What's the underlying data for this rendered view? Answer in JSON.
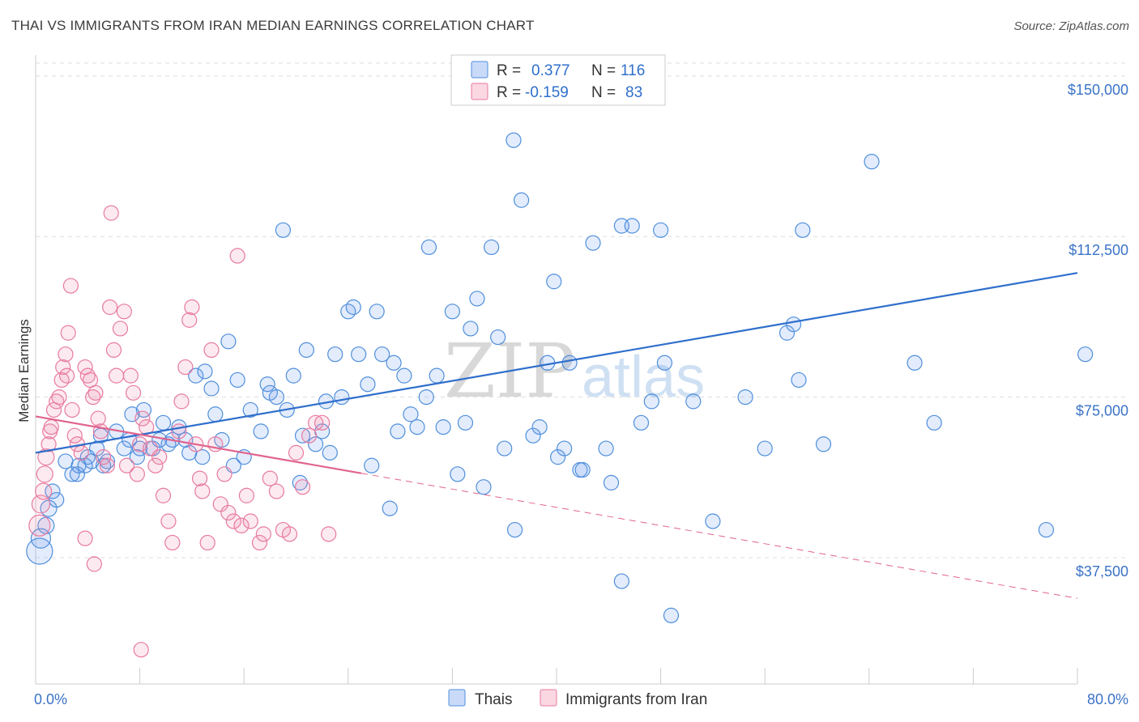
{
  "title": "THAI VS IMMIGRANTS FROM IRAN MEDIAN EARNINGS CORRELATION CHART",
  "source": "Source: ZipAtlas.com",
  "watermark": {
    "zip": "ZIP",
    "atlas": "atlas"
  },
  "colors": {
    "blue": "#4f8fdc",
    "blue_fill": "rgba(100,149,237,0.18)",
    "blue_line": "#2f6fcc",
    "pink": "#e87aa0",
    "pink_fill": "rgba(240,140,170,0.18)",
    "pink_line": "#e0648e",
    "axis_label": "#3a73c7",
    "grid": "#dddddd"
  },
  "legend": {
    "rows": [
      {
        "r_label": "R =",
        "r_value": "0.377",
        "n_label": "N =",
        "n_value": "116"
      },
      {
        "r_label": "R =",
        "r_value": "-0.159",
        "n_label": "N =",
        "n_value": "83"
      }
    ]
  },
  "bottom_legend": [
    "Thais",
    "Immigrants from Iran"
  ],
  "chart_data": {
    "type": "scatter",
    "title": "THAI VS IMMIGRANTS FROM IRAN MEDIAN EARNINGS CORRELATION CHART",
    "xlabel": "",
    "ylabel": "Median Earnings",
    "xlim": [
      0,
      80
    ],
    "ylim": [
      8000,
      153000
    ],
    "x_tick_labels": [
      "0.0%",
      "80.0%"
    ],
    "y_ticks": [
      37500,
      75000,
      112500,
      150000
    ],
    "y_tick_labels": [
      "$37,500",
      "$75,000",
      "$112,500",
      "$150,000"
    ],
    "grid": true,
    "series": [
      {
        "name": "Thais",
        "r": 0.377,
        "n": 116,
        "trend": {
          "x": [
            0,
            80
          ],
          "y": [
            62000,
            104000
          ],
          "dashed_from": null
        },
        "points": [
          [
            0.3,
            39000,
            16
          ],
          [
            0.4,
            42000,
            12
          ],
          [
            0.8,
            45000,
            10
          ],
          [
            1,
            49000,
            10
          ],
          [
            1.3,
            53000,
            9
          ],
          [
            1.6,
            51000,
            9
          ],
          [
            2.3,
            60000,
            9
          ],
          [
            2.8,
            57000,
            9
          ],
          [
            3.3,
            59000,
            9
          ],
          [
            3.8,
            59000,
            9
          ],
          [
            4,
            61000,
            9
          ],
          [
            4.7,
            63000,
            9
          ],
          [
            5,
            66000,
            9
          ],
          [
            5.5,
            60000,
            9
          ],
          [
            6.2,
            67000,
            9
          ],
          [
            7.2,
            65000,
            9
          ],
          [
            8,
            63000,
            9
          ],
          [
            8.3,
            72000,
            9
          ],
          [
            9,
            63000,
            9
          ],
          [
            9.5,
            65000,
            9
          ],
          [
            10.5,
            65000,
            9
          ],
          [
            11.8,
            62000,
            9
          ],
          [
            12.3,
            80000,
            9
          ],
          [
            13,
            81000,
            9
          ],
          [
            13.5,
            77000,
            9
          ],
          [
            14.8,
            88000,
            9
          ],
          [
            15.2,
            59000,
            9
          ],
          [
            16.5,
            72000,
            9
          ],
          [
            17.3,
            67000,
            9
          ],
          [
            17.8,
            78000,
            9
          ],
          [
            18,
            76000,
            9
          ],
          [
            18.5,
            75000,
            9
          ],
          [
            19,
            114000,
            9
          ],
          [
            19.8,
            80000,
            9
          ],
          [
            20.3,
            55000,
            9
          ],
          [
            20.8,
            86000,
            9
          ],
          [
            21.5,
            64000,
            9
          ],
          [
            22,
            67000,
            9
          ],
          [
            22.3,
            74000,
            9
          ],
          [
            23,
            85000,
            9
          ],
          [
            24,
            95000,
            9
          ],
          [
            24.4,
            96000,
            9
          ],
          [
            24.8,
            85000,
            9
          ],
          [
            25.5,
            78000,
            9
          ],
          [
            26.2,
            95000,
            9
          ],
          [
            26.6,
            85000,
            9
          ],
          [
            27.2,
            49000,
            9
          ],
          [
            27.5,
            83000,
            9
          ],
          [
            28.3,
            80000,
            9
          ],
          [
            28.8,
            71000,
            9
          ],
          [
            29.3,
            68000,
            9
          ],
          [
            30.2,
            110000,
            9
          ],
          [
            30.8,
            80000,
            9
          ],
          [
            31.3,
            68000,
            9
          ],
          [
            32,
            95000,
            9
          ],
          [
            32.4,
            57000,
            9
          ],
          [
            33.4,
            91000,
            9
          ],
          [
            33.9,
            98000,
            9
          ],
          [
            34.4,
            54000,
            9
          ],
          [
            35,
            110000,
            9
          ],
          [
            35.5,
            89000,
            9
          ],
          [
            36.7,
            135000,
            9
          ],
          [
            36.8,
            44000,
            9
          ],
          [
            37.3,
            121000,
            9
          ],
          [
            38.2,
            66000,
            9
          ],
          [
            38.7,
            68000,
            9
          ],
          [
            39.3,
            83000,
            9
          ],
          [
            39.8,
            102000,
            9
          ],
          [
            40.1,
            61000,
            9
          ],
          [
            40.6,
            63000,
            9
          ],
          [
            41,
            83000,
            9
          ],
          [
            41.8,
            58000,
            9
          ],
          [
            42.8,
            111000,
            9
          ],
          [
            43.8,
            63000,
            9
          ],
          [
            44.2,
            55000,
            9
          ],
          [
            45,
            115000,
            9
          ],
          [
            45,
            32000,
            9
          ],
          [
            45.8,
            115000,
            9
          ],
          [
            47.3,
            74000,
            9
          ],
          [
            48,
            114000,
            9
          ],
          [
            48.3,
            83000,
            9
          ],
          [
            48.8,
            24000,
            9
          ],
          [
            52,
            46000,
            9
          ],
          [
            54.5,
            75000,
            9
          ],
          [
            56,
            63000,
            9
          ],
          [
            57.7,
            90000,
            9
          ],
          [
            58.2,
            92000,
            9
          ],
          [
            58.6,
            79000,
            9
          ],
          [
            58.9,
            114000,
            9
          ],
          [
            64.2,
            130000,
            9
          ],
          [
            67.5,
            83000,
            9
          ],
          [
            69,
            69000,
            9
          ],
          [
            77.6,
            44000,
            9
          ],
          [
            80.6,
            85000,
            9
          ],
          [
            12.8,
            61000,
            9
          ],
          [
            20.5,
            66000,
            9
          ],
          [
            9.8,
            69000,
            9
          ],
          [
            11.5,
            65000,
            9
          ],
          [
            15.5,
            79000,
            9
          ],
          [
            14.3,
            65000,
            9
          ],
          [
            4.3,
            60000,
            9
          ],
          [
            5.2,
            59000,
            9
          ],
          [
            6.8,
            63000,
            9
          ],
          [
            7.8,
            61000,
            9
          ],
          [
            10.2,
            64000,
            9
          ],
          [
            11,
            68000,
            9
          ],
          [
            16,
            61000,
            9
          ],
          [
            19.3,
            72000,
            9
          ],
          [
            23.5,
            75000,
            9
          ],
          [
            25.8,
            59000,
            9
          ],
          [
            27.8,
            67000,
            9
          ],
          [
            30,
            75000,
            9
          ],
          [
            33,
            69000,
            9
          ],
          [
            36,
            63000,
            9
          ],
          [
            42,
            58000,
            9
          ],
          [
            46.5,
            69000,
            9
          ],
          [
            50.5,
            74000,
            9
          ],
          [
            60.5,
            64000,
            9
          ],
          [
            3.2,
            57000,
            9
          ],
          [
            7.4,
            71000,
            9
          ],
          [
            13.8,
            71000,
            9
          ],
          [
            22.6,
            62000,
            9
          ]
        ]
      },
      {
        "name": "Immigrants from Iran",
        "r": -0.159,
        "n": 83,
        "trend": {
          "x": [
            0,
            80
          ],
          "y": [
            70500,
            28000
          ],
          "dashed_from": 25
        },
        "points": [
          [
            0.3,
            45000,
            13
          ],
          [
            0.4,
            50000,
            11
          ],
          [
            0.6,
            53000,
            10
          ],
          [
            0.7,
            57000,
            10
          ],
          [
            0.8,
            61000,
            10
          ],
          [
            1,
            64000,
            9
          ],
          [
            1.1,
            67000,
            9
          ],
          [
            1.2,
            68000,
            9
          ],
          [
            1.4,
            72000,
            9
          ],
          [
            1.6,
            74000,
            9
          ],
          [
            1.8,
            75000,
            9
          ],
          [
            2,
            79000,
            9
          ],
          [
            2.1,
            82000,
            9
          ],
          [
            2.3,
            85000,
            9
          ],
          [
            2.4,
            80000,
            9
          ],
          [
            2.5,
            90000,
            9
          ],
          [
            2.7,
            101000,
            9
          ],
          [
            2.8,
            72000,
            9
          ],
          [
            3,
            66000,
            9
          ],
          [
            3.2,
            64000,
            9
          ],
          [
            3.5,
            62000,
            9
          ],
          [
            3.8,
            82000,
            9
          ],
          [
            4,
            80000,
            9
          ],
          [
            4.2,
            79000,
            9
          ],
          [
            4.4,
            75000,
            9
          ],
          [
            4.6,
            76000,
            9
          ],
          [
            4.8,
            70000,
            9
          ],
          [
            5,
            67000,
            9
          ],
          [
            5.2,
            61000,
            9
          ],
          [
            5.5,
            59000,
            9
          ],
          [
            5.7,
            96000,
            9
          ],
          [
            5.8,
            118000,
            9
          ],
          [
            6,
            86000,
            9
          ],
          [
            6.2,
            80000,
            9
          ],
          [
            6.5,
            91000,
            9
          ],
          [
            6.8,
            95000,
            9
          ],
          [
            7,
            59000,
            9
          ],
          [
            7.3,
            80000,
            9
          ],
          [
            7.5,
            76000,
            9
          ],
          [
            7.8,
            57000,
            9
          ],
          [
            8,
            64000,
            9
          ],
          [
            8.2,
            70000,
            9
          ],
          [
            8.5,
            68000,
            9
          ],
          [
            8.8,
            63000,
            9
          ],
          [
            9.2,
            59000,
            9
          ],
          [
            9.5,
            61000,
            9
          ],
          [
            9.8,
            52000,
            9
          ],
          [
            10.2,
            46000,
            9
          ],
          [
            10.5,
            41000,
            9
          ],
          [
            11,
            67000,
            9
          ],
          [
            11.2,
            74000,
            9
          ],
          [
            11.5,
            82000,
            9
          ],
          [
            11.8,
            93000,
            9
          ],
          [
            12,
            96000,
            9
          ],
          [
            12.3,
            64000,
            9
          ],
          [
            12.6,
            56000,
            9
          ],
          [
            12.8,
            53000,
            9
          ],
          [
            13.2,
            41000,
            9
          ],
          [
            13.5,
            86000,
            9
          ],
          [
            13.8,
            64000,
            9
          ],
          [
            14.2,
            50000,
            9
          ],
          [
            14.5,
            57000,
            9
          ],
          [
            14.8,
            48000,
            9
          ],
          [
            15.2,
            46000,
            9
          ],
          [
            15.5,
            108000,
            9
          ],
          [
            15.8,
            45000,
            9
          ],
          [
            16.2,
            52000,
            9
          ],
          [
            16.5,
            46000,
            9
          ],
          [
            17.2,
            41000,
            9
          ],
          [
            17.5,
            43000,
            9
          ],
          [
            18,
            56000,
            9
          ],
          [
            18.5,
            53000,
            9
          ],
          [
            19,
            44000,
            9
          ],
          [
            19.5,
            43000,
            9
          ],
          [
            20,
            62000,
            9
          ],
          [
            20.5,
            54000,
            9
          ],
          [
            21,
            66000,
            9
          ],
          [
            21.5,
            69000,
            9
          ],
          [
            22,
            69000,
            9
          ],
          [
            22.5,
            43000,
            9
          ],
          [
            8.1,
            16000,
            9
          ],
          [
            4.5,
            36000,
            9
          ],
          [
            3.8,
            42000,
            9
          ]
        ]
      }
    ]
  }
}
